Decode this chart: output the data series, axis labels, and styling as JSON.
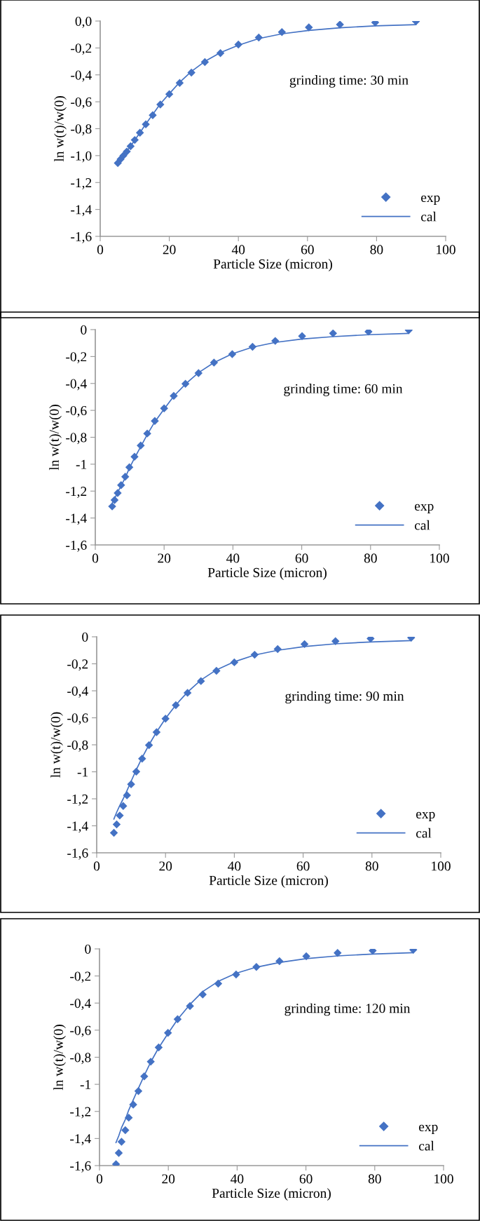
{
  "chart_data": [
    {
      "type": "scatter",
      "xlabel": "Particle Size (micron)",
      "ylabel": "ln w(t)/w(0)",
      "annotations": [
        "grinding time: 30 min"
      ],
      "legend": "bottom right",
      "grid": false,
      "xlim": [
        0,
        100
      ],
      "xticks": [
        0,
        20,
        40,
        60,
        80,
        100
      ],
      "ylim": [
        -1.6,
        0
      ],
      "yticks": [
        {
          "value": 0,
          "label": "0,0"
        },
        {
          "value": -0.2,
          "label": "-0,2"
        },
        {
          "value": -0.4,
          "label": "-0,4"
        },
        {
          "value": -0.6,
          "label": "-0,6"
        },
        {
          "value": -0.8,
          "label": "-0,8"
        },
        {
          "value": -1.0,
          "label": "-1,0"
        },
        {
          "value": -1.2,
          "label": "-1,2"
        },
        {
          "value": -1.4,
          "label": "-1,4"
        },
        {
          "value": -1.6,
          "label": "-1,6"
        }
      ],
      "x": [
        5.1,
        5.9,
        6.7,
        7.7,
        8.8,
        10,
        11.5,
        13.2,
        15.2,
        17.4,
        20,
        23,
        26.4,
        30.3,
        34.8,
        40,
        45.9,
        52.6,
        60.4,
        69.4,
        79.6,
        91.4
      ],
      "series": [
        {
          "name": "exp",
          "marker": "diamond",
          "color": "#4472c4",
          "values": [
            -1.055,
            -1.027,
            -1.0,
            -0.97,
            -0.93,
            -0.884,
            -0.83,
            -0.767,
            -0.7,
            -0.62,
            -0.543,
            -0.46,
            -0.383,
            -0.305,
            -0.238,
            -0.175,
            -0.123,
            -0.082,
            -0.047,
            -0.026,
            -0.011,
            -0.002
          ]
        },
        {
          "name": "cal",
          "type": "line",
          "line_style": "solid",
          "color": "#4472c4",
          "values": [
            -1.05,
            -1.025,
            -0.995,
            -0.965,
            -0.93,
            -0.885,
            -0.83,
            -0.765,
            -0.695,
            -0.615,
            -0.54,
            -0.455,
            -0.375,
            -0.3,
            -0.235,
            -0.18,
            -0.13,
            -0.095,
            -0.07,
            -0.05,
            -0.036,
            -0.027
          ]
        }
      ]
    },
    {
      "type": "scatter",
      "xlabel": "Particle Size (micron)",
      "ylabel": "ln w(t)/w(0)",
      "annotations": [
        "grinding time: 60 min"
      ],
      "legend": "bottom right",
      "grid": false,
      "xlim": [
        0,
        100
      ],
      "xticks": [
        0,
        20,
        40,
        60,
        80,
        100
      ],
      "ylim": [
        -1.6,
        0
      ],
      "yticks": [
        0,
        {
          "value": -0.2,
          "label": "-0,2"
        },
        {
          "value": -0.4,
          "label": "-0,4"
        },
        {
          "value": -0.6,
          "label": "-0,6"
        },
        {
          "value": -0.8,
          "label": "-0,8"
        },
        -1,
        {
          "value": -1.2,
          "label": "-1,2"
        },
        {
          "value": -1.4,
          "label": "-1,4"
        },
        {
          "value": -1.6,
          "label": "-1,6"
        }
      ],
      "x": [
        4.9,
        5.6,
        6.5,
        7.5,
        8.7,
        9.9,
        11.4,
        13.2,
        15.1,
        17.3,
        20,
        22.8,
        26.2,
        30,
        34.5,
        39.8,
        45.7,
        52.3,
        60.1,
        69.1,
        79.4,
        91.1
      ],
      "series": [
        {
          "name": "exp",
          "marker": "diamond",
          "color": "#4472c4",
          "values": [
            -1.314,
            -1.266,
            -1.214,
            -1.156,
            -1.093,
            -1.023,
            -0.945,
            -0.861,
            -0.772,
            -0.679,
            -0.585,
            -0.492,
            -0.403,
            -0.323,
            -0.245,
            -0.182,
            -0.128,
            -0.084,
            -0.048,
            -0.028,
            -0.015,
            -0.004
          ]
        },
        {
          "name": "cal",
          "type": "line",
          "line_style": "solid",
          "color": "#4472c4",
          "values": [
            -1.29,
            -1.255,
            -1.21,
            -1.16,
            -1.1,
            -1.03,
            -0.955,
            -0.87,
            -0.78,
            -0.685,
            -0.59,
            -0.495,
            -0.405,
            -0.32,
            -0.245,
            -0.18,
            -0.13,
            -0.095,
            -0.07,
            -0.052,
            -0.038,
            -0.028
          ]
        }
      ]
    },
    {
      "type": "scatter",
      "xlabel": "Particle Size (micron)",
      "ylabel": "ln w(t)/w(0)",
      "annotations": [
        "grinding time: 90 min"
      ],
      "legend": "bottom right",
      "grid": false,
      "xlim": [
        0,
        100
      ],
      "xticks": [
        0,
        20,
        40,
        60,
        80,
        100
      ],
      "ylim": [
        -1.6,
        0
      ],
      "yticks": [
        0,
        {
          "value": -0.2,
          "label": "-0,2"
        },
        {
          "value": -0.4,
          "label": "-0,4"
        },
        {
          "value": -0.6,
          "label": "-0,6"
        },
        {
          "value": -0.8,
          "label": "-0,8"
        },
        -1,
        {
          "value": -1.2,
          "label": "-1,2"
        },
        {
          "value": -1.4,
          "label": "-1,4"
        },
        {
          "value": -1.6,
          "label": "-1,6"
        }
      ],
      "x": [
        5,
        5.8,
        6.7,
        7.7,
        8.8,
        10,
        11.5,
        13.2,
        15.2,
        17.4,
        20,
        23,
        26.4,
        30.3,
        34.8,
        40,
        45.9,
        52.6,
        60.4,
        69.4,
        79.6,
        91.4
      ],
      "series": [
        {
          "name": "exp",
          "marker": "diamond",
          "color": "#4472c4",
          "values": [
            -1.452,
            -1.39,
            -1.324,
            -1.253,
            -1.174,
            -1.092,
            -0.999,
            -0.903,
            -0.803,
            -0.706,
            -0.606,
            -0.506,
            -0.415,
            -0.328,
            -0.252,
            -0.189,
            -0.133,
            -0.091,
            -0.054,
            -0.032,
            -0.013,
            -0.006
          ]
        },
        {
          "name": "cal",
          "type": "line",
          "line_style": "solid",
          "color": "#4472c4",
          "values": [
            -1.35,
            -1.3,
            -1.25,
            -1.2,
            -1.14,
            -1.07,
            -0.985,
            -0.895,
            -0.8,
            -0.705,
            -0.605,
            -0.505,
            -0.41,
            -0.32,
            -0.245,
            -0.185,
            -0.135,
            -0.1,
            -0.072,
            -0.052,
            -0.038,
            -0.028
          ]
        }
      ]
    },
    {
      "type": "scatter",
      "xlabel": "Particle Size (micron)",
      "ylabel": "ln w(t)/w(0)",
      "annotations": [
        "grinding time: 120 min"
      ],
      "legend": "bottom right",
      "grid": false,
      "xlim": [
        0,
        100
      ],
      "xticks": [
        0,
        20,
        40,
        60,
        80,
        100
      ],
      "ylim": [
        -1.6,
        0
      ],
      "yticks": [
        0,
        {
          "value": -0.2,
          "label": "-0,2"
        },
        {
          "value": -0.4,
          "label": "-0,4"
        },
        {
          "value": -0.6,
          "label": "-0,6"
        },
        {
          "value": -0.8,
          "label": "-0,8"
        },
        -1,
        {
          "value": -1.2,
          "label": "-1,2"
        },
        {
          "value": -1.4,
          "label": "-1,4"
        },
        {
          "value": -1.6,
          "label": "-1,6"
        }
      ],
      "x": [
        4.8,
        5.6,
        6.4,
        7.5,
        8.5,
        9.8,
        11.3,
        13,
        14.9,
        17.2,
        19.9,
        22.7,
        26.3,
        30,
        34.5,
        39.7,
        45.6,
        52.3,
        60.1,
        69.2,
        79.4,
        91.2
      ],
      "series": [
        {
          "name": "exp",
          "marker": "diamond",
          "color": "#4472c4",
          "values": [
            -1.589,
            -1.507,
            -1.424,
            -1.339,
            -1.246,
            -1.15,
            -1.05,
            -0.941,
            -0.833,
            -0.728,
            -0.62,
            -0.519,
            -0.422,
            -0.337,
            -0.256,
            -0.189,
            -0.133,
            -0.091,
            -0.054,
            -0.03,
            -0.013,
            -0.007
          ]
        },
        {
          "name": "cal",
          "type": "line",
          "line_style": "solid",
          "color": "#4472c4",
          "values": [
            -1.43,
            -1.38,
            -1.32,
            -1.26,
            -1.19,
            -1.115,
            -1.03,
            -0.935,
            -0.835,
            -0.73,
            -0.625,
            -0.52,
            -0.41,
            -0.315,
            -0.24,
            -0.18,
            -0.135,
            -0.1,
            -0.072,
            -0.052,
            -0.038,
            -0.028
          ]
        }
      ]
    }
  ]
}
